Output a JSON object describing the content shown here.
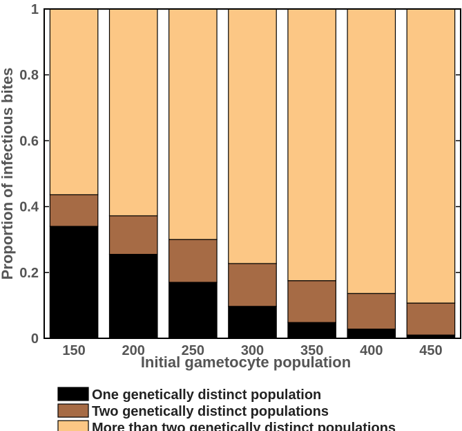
{
  "chart_data": {
    "type": "bar",
    "stacked": true,
    "categories": [
      "150",
      "200",
      "250",
      "300",
      "350",
      "400",
      "450"
    ],
    "series": [
      {
        "name": "One genetically distinct population",
        "color": "#000000",
        "values": [
          0.34,
          0.255,
          0.17,
          0.097,
          0.048,
          0.028,
          0.01
        ]
      },
      {
        "name": "Two genetically distinct populations",
        "color": "#a66b45",
        "values": [
          0.096,
          0.117,
          0.13,
          0.13,
          0.127,
          0.108,
          0.097
        ]
      },
      {
        "name": "More than two genetically distinct populations",
        "color": "#fcc785",
        "values": [
          0.564,
          0.628,
          0.7,
          0.773,
          0.825,
          0.864,
          0.893
        ]
      }
    ],
    "xlabel": "Initial gametocyte population",
    "ylabel": "Proportion of infectious bites",
    "ylim": [
      0,
      1
    ],
    "yticks": [
      "0",
      "0.2",
      "0.4",
      "0.6",
      "0.8",
      "1"
    ],
    "grid": false,
    "legend_position": "bottom-left"
  }
}
